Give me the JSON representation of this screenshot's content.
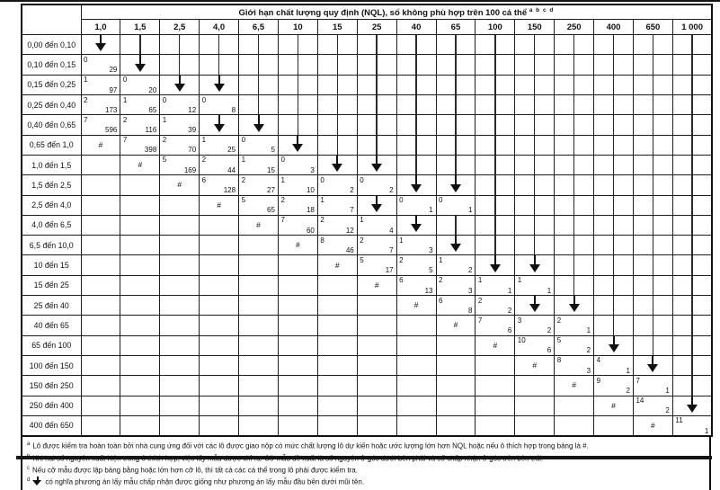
{
  "table": {
    "title": "Giới hạn chất lượng quy định (NQL), số không phù hợp trên 100 cá thể",
    "title_superscript": "a b c d",
    "col_headers": [
      "1,0",
      "1,5",
      "2,5",
      "4,0",
      "6,5",
      "10",
      "15",
      "25",
      "40",
      "65",
      "100",
      "150",
      "250",
      "400",
      "650",
      "1 000"
    ],
    "symbols": {
      "hash": "#"
    },
    "rows": [
      {
        "label": "0,00 đến 0,10",
        "cells": [
          "v",
          "|",
          "|",
          "|",
          "|",
          "|",
          "|",
          "|",
          "|",
          "|",
          "|",
          "|",
          "|",
          "|",
          "|",
          "|"
        ]
      },
      {
        "label": "0,10 đến 0,15",
        "cells": [
          {
            "a": 0,
            "n": 29
          },
          "v",
          "|",
          "|",
          "|",
          "|",
          "|",
          "|",
          "|",
          "|",
          "|",
          "|",
          "|",
          "|",
          "|",
          "|"
        ]
      },
      {
        "label": "0,15 đến 0,25",
        "cells": [
          {
            "a": 1,
            "n": 97
          },
          {
            "a": 0,
            "n": 20
          },
          "v",
          "v",
          "|",
          "|",
          "|",
          "|",
          "|",
          "|",
          "|",
          "|",
          "|",
          "|",
          "|",
          "|"
        ]
      },
      {
        "label": "0,25 đến 0,40",
        "cells": [
          {
            "a": 2,
            "n": 173
          },
          {
            "a": 1,
            "n": 65
          },
          {
            "a": 0,
            "n": 12
          },
          {
            "a": 0,
            "n": 8
          },
          "|",
          "|",
          "|",
          "|",
          "|",
          "|",
          "|",
          "|",
          "|",
          "|",
          "|",
          "|"
        ]
      },
      {
        "label": "0,40 đến 0,65",
        "cells": [
          {
            "a": 7,
            "n": 596
          },
          {
            "a": 2,
            "n": 116
          },
          {
            "a": 1,
            "n": 39
          },
          "v",
          "v",
          "|",
          "|",
          "|",
          "|",
          "|",
          "|",
          "|",
          "|",
          "|",
          "|",
          "|"
        ]
      },
      {
        "label": "0,65 đến 1,0",
        "cells": [
          "#",
          {
            "a": 7,
            "n": 398
          },
          {
            "a": 2,
            "n": 70
          },
          {
            "a": 1,
            "n": 25
          },
          {
            "a": 0,
            "n": 5
          },
          "v",
          "|",
          "|",
          "|",
          "|",
          "|",
          "|",
          "|",
          "|",
          "|",
          "|"
        ]
      },
      {
        "label": "1,0 đến 1,5",
        "cells": [
          null,
          "#",
          {
            "a": 5,
            "n": 169
          },
          {
            "a": 2,
            "n": 44
          },
          {
            "a": 1,
            "n": 15
          },
          {
            "a": 0,
            "n": 3
          },
          "v",
          "v",
          "|",
          "|",
          "|",
          "|",
          "|",
          "|",
          "|",
          "|"
        ]
      },
      {
        "label": "1,5 đến 2,5",
        "cells": [
          null,
          null,
          "#",
          {
            "a": 6,
            "n": 128
          },
          {
            "a": 2,
            "n": 27
          },
          {
            "a": 1,
            "n": 10
          },
          {
            "a": 0,
            "n": 2
          },
          {
            "a": 0,
            "n": 2
          },
          "v",
          "v",
          "|",
          "|",
          "|",
          "|",
          "|",
          "|"
        ]
      },
      {
        "label": "2,5 đến 4,0",
        "cells": [
          null,
          null,
          null,
          "#",
          {
            "a": 5,
            "n": 65
          },
          {
            "a": 2,
            "n": 18
          },
          {
            "a": 1,
            "n": 7
          },
          "v",
          {
            "a": 0,
            "n": 1
          },
          {
            "a": 0,
            "n": 1
          },
          "|",
          "|",
          "|",
          "|",
          "|",
          "|"
        ]
      },
      {
        "label": "4,0 đến 6,5",
        "cells": [
          null,
          null,
          null,
          null,
          "#",
          {
            "a": 7,
            "n": 60
          },
          {
            "a": 2,
            "n": 12
          },
          {
            "a": 1,
            "n": 4
          },
          "v",
          "|",
          "|",
          "|",
          "|",
          "|",
          "|",
          "|"
        ]
      },
      {
        "label": "6,5 đến 10,0",
        "cells": [
          null,
          null,
          null,
          null,
          null,
          "#",
          {
            "a": 8,
            "n": 46
          },
          {
            "a": 2,
            "n": 7
          },
          {
            "a": 1,
            "n": 3
          },
          "v",
          "|",
          "|",
          "|",
          "|",
          "|",
          "|"
        ]
      },
      {
        "label": "10 đến 15",
        "cells": [
          null,
          null,
          null,
          null,
          null,
          null,
          "#",
          {
            "a": 5,
            "n": 17
          },
          {
            "a": 2,
            "n": 5
          },
          {
            "a": 1,
            "n": 2
          },
          "v",
          "v",
          "|",
          "|",
          "|",
          "|"
        ]
      },
      {
        "label": "15 đến 25",
        "cells": [
          null,
          null,
          null,
          null,
          null,
          null,
          null,
          "#",
          {
            "a": 6,
            "n": 13
          },
          {
            "a": 2,
            "n": 3
          },
          {
            "a": 1,
            "n": 1
          },
          {
            "a": 1,
            "n": 1
          },
          "|",
          "|",
          "|",
          "|"
        ]
      },
      {
        "label": "25 đến 40",
        "cells": [
          null,
          null,
          null,
          null,
          null,
          null,
          null,
          null,
          "#",
          {
            "a": 6,
            "n": 8
          },
          {
            "a": 2,
            "n": 2
          },
          "v",
          "v",
          "|",
          "|",
          "|"
        ]
      },
      {
        "label": "40 đến 65",
        "cells": [
          null,
          null,
          null,
          null,
          null,
          null,
          null,
          null,
          null,
          "#",
          {
            "a": 7,
            "n": 6
          },
          {
            "a": 3,
            "n": 2
          },
          {
            "a": 2,
            "n": 1
          },
          "|",
          "|",
          "|"
        ]
      },
      {
        "label": "65 đến 100",
        "cells": [
          null,
          null,
          null,
          null,
          null,
          null,
          null,
          null,
          null,
          null,
          "#",
          {
            "a": 10,
            "n": 6
          },
          {
            "a": 5,
            "n": 2
          },
          "v",
          "|",
          "|"
        ]
      },
      {
        "label": "100 đến 150",
        "cells": [
          null,
          null,
          null,
          null,
          null,
          null,
          null,
          null,
          null,
          null,
          null,
          "#",
          {
            "a": 8,
            "n": 3
          },
          {
            "a": 4,
            "n": 1
          },
          "v",
          "|"
        ]
      },
      {
        "label": "150 đến 250",
        "cells": [
          null,
          null,
          null,
          null,
          null,
          null,
          null,
          null,
          null,
          null,
          null,
          null,
          "#",
          {
            "a": 9,
            "n": 2
          },
          {
            "a": 7,
            "n": 1
          },
          "|"
        ]
      },
      {
        "label": "250 đến 400",
        "cells": [
          null,
          null,
          null,
          null,
          null,
          null,
          null,
          null,
          null,
          null,
          null,
          null,
          null,
          "#",
          {
            "a": 14,
            "n": 2
          },
          "v"
        ]
      },
      {
        "label": "400 đến 650",
        "cells": [
          null,
          null,
          null,
          null,
          null,
          null,
          null,
          null,
          null,
          null,
          null,
          null,
          null,
          null,
          "#",
          {
            "a": 11,
            "n": 1
          }
        ]
      }
    ]
  },
  "footnotes": [
    {
      "marker": "a",
      "arrow_icon": false,
      "text": "Lô được kiểm tra hoàn toàn bởi nhà cung ứng đối với các lô được giao nộp có mức chất lượng lô dự kiến hoặc ước lượng lớn hơn NQL hoặc nếu ô thích hợp trong bảng là #."
    },
    {
      "marker": "b",
      "arrow_icon": false,
      "text": "Khi hai số nguyên xuất hiện trong ô thích hợp, việc lấy mẫu được chỉ ra. Cỡ mẫu đề xuất là số nguyên ở góc dưới bên phải và số chấp nhận ở góc trên bên trái."
    },
    {
      "marker": "c",
      "arrow_icon": false,
      "text": "Nếu cỡ mẫu được lập bảng bằng hoặc lớn hơn cỡ lô, thì tất cả các cá thể trong lô phải được kiểm tra."
    },
    {
      "marker": "d",
      "arrow_icon": true,
      "text": "có nghĩa phương án lấy mẫu chấp nhận được giống như phương án lấy mẫu đầu bên dưới mũi tên."
    }
  ]
}
